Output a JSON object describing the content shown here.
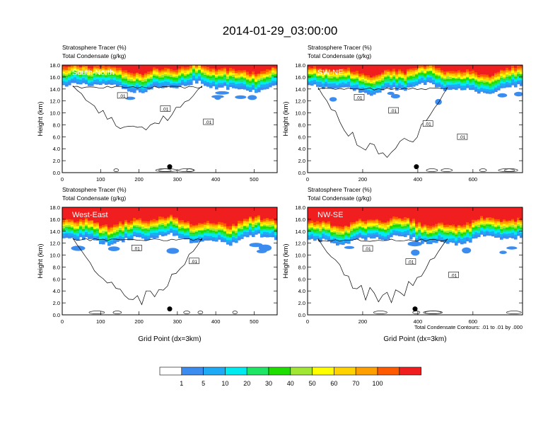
{
  "figure": {
    "title": "2014-01-29_03:00:00",
    "footnote": "Total Condensate Contours: .01 to .01 by .000"
  },
  "colorbar": {
    "levels": [
      "1",
      "5",
      "10",
      "20",
      "30",
      "40",
      "50",
      "60",
      "70",
      "100"
    ],
    "colors": [
      "#ffffff",
      "#3c8cf0",
      "#1eaaf5",
      "#00ebf0",
      "#1ee664",
      "#1ede00",
      "#a0e632",
      "#ffff00",
      "#ffd200",
      "#ffa000",
      "#ff5a00",
      "#f01e1e"
    ]
  },
  "chart_data": [
    {
      "type": "heatmap",
      "name": "South-North",
      "title_line1": "Stratosphere Tracer   (%)",
      "title_line2": "Total Condensate   (g/kg)",
      "ylabel": "Height (km)",
      "xlabel": "",
      "xlim": [
        0,
        560
      ],
      "ylim": [
        0,
        18
      ],
      "xticks": [
        "0",
        "100",
        "200",
        "300",
        "400",
        "500"
      ],
      "yticks": [
        "0.0",
        "2.0",
        "4.0",
        "6.0",
        "8.0",
        "10.0",
        "12.0",
        "14.0",
        "16.0",
        "18.0"
      ],
      "contour_labels": [
        ".01",
        ".01",
        ".01"
      ],
      "marker_x": 280,
      "tracer_base_km": 14.3
    },
    {
      "type": "heatmap",
      "name": "SW-NE",
      "title_line1": "Stratosphere Tracer   (%)",
      "title_line2": "Total Condensate   (g/kg)",
      "ylabel": "Height (km)",
      "xlabel": "",
      "xlim": [
        0,
        780
      ],
      "ylim": [
        0,
        18
      ],
      "xticks": [
        "0",
        "200",
        "400",
        "600"
      ],
      "yticks": [
        "0.0",
        "2.0",
        "4.0",
        "6.0",
        "8.0",
        "10.0",
        "12.0",
        "14.0",
        "16.0",
        "18.0"
      ],
      "contour_labels": [
        ".01",
        ".01",
        ".01",
        ".01"
      ],
      "marker_x": 395,
      "tracer_base_km": 14.0
    },
    {
      "type": "heatmap",
      "name": "West-East",
      "title_line1": "Stratosphere Tracer   (%)",
      "title_line2": "Total Condensate   (g/kg)",
      "ylabel": "Height (km)",
      "xlabel": "Grid Point (dx=3km)",
      "xlim": [
        0,
        560
      ],
      "ylim": [
        0,
        18
      ],
      "xticks": [
        "0",
        "100",
        "200",
        "300",
        "400",
        "500"
      ],
      "yticks": [
        "0.0",
        "2.0",
        "4.0",
        "6.0",
        "8.0",
        "10.0",
        "12.0",
        "14.0",
        "16.0",
        "18.0"
      ],
      "contour_labels": [
        ".01",
        ".01"
      ],
      "marker_x": 280,
      "tracer_base_km": 12.6
    },
    {
      "type": "heatmap",
      "name": "NW-SE",
      "title_line1": "Stratosphere Tracer   (%)",
      "title_line2": "Total Condensate   (g/kg)",
      "ylabel": "Height (km)",
      "xlabel": "Grid Point (dx=3km)",
      "xlim": [
        0,
        780
      ],
      "ylim": [
        0,
        18
      ],
      "xticks": [
        "0",
        "200",
        "400",
        "600"
      ],
      "yticks": [
        "0.0",
        "2.0",
        "4.0",
        "6.0",
        "8.0",
        "10.0",
        "12.0",
        "14.0",
        "16.0",
        "18.0"
      ],
      "contour_labels": [
        ".01",
        ".01",
        ".01"
      ],
      "marker_x": 390,
      "tracer_base_km": 12.5
    }
  ]
}
